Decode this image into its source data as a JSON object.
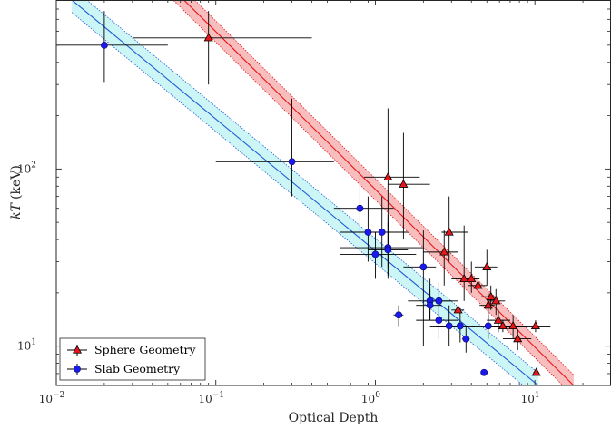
{
  "chart_data": {
    "type": "scatter",
    "xlabel": "Optical Depth",
    "ylabel_main": "kT",
    "ylabel_unit": "(keV)",
    "xscale": "log",
    "yscale": "log",
    "xlim": [
      0.01,
      30
    ],
    "ylim": [
      6,
      900
    ],
    "xticks": [
      {
        "value": 0.01,
        "base": "10",
        "exp": "−2"
      },
      {
        "value": 0.1,
        "base": "10",
        "exp": "−1"
      },
      {
        "value": 1,
        "base": "10",
        "exp": "0"
      },
      {
        "value": 10,
        "base": "10",
        "exp": "1"
      }
    ],
    "yticks": [
      {
        "value": 10,
        "base": "10",
        "exp": "1"
      },
      {
        "value": 100,
        "base": "10",
        "exp": "2"
      }
    ],
    "grid": false,
    "legend_position": "bottom-left",
    "series": [
      {
        "name": "Sphere Geometry",
        "marker": "triangle",
        "color": "#e8161a",
        "fit_color": "#e8161a",
        "band_color": "#f7b6b6",
        "fit": {
          "x_start": 0.04,
          "y_start": 1350,
          "x_end": 17.5,
          "y_end": 6
        },
        "band": {
          "upper_offset_dex": 0.06,
          "lower_offset_dex": -0.06
        },
        "points": [
          {
            "x": 0.09,
            "y": 550,
            "xerr": [
              0.03,
              0.4
            ],
            "yerr": [
              300,
              780
            ]
          },
          {
            "x": 1.2,
            "y": 90,
            "xerr": [
              0.85,
              1.9
            ],
            "yerr": [
              28,
              220
            ]
          },
          {
            "x": 1.5,
            "y": 82,
            "xerr": [
              1.2,
              2.2
            ],
            "yerr": [
              40,
              160
            ]
          },
          {
            "x": 2.7,
            "y": 34,
            "xerr": [
              2.0,
              3.3
            ],
            "yerr": [
              22,
              45
            ]
          },
          {
            "x": 2.9,
            "y": 44,
            "xerr": [
              2.6,
              3.8
            ],
            "yerr": [
              30,
              70
            ]
          },
          {
            "x": 3.3,
            "y": 16,
            "xerr": [
              3.0,
              3.6
            ],
            "yerr": [
              13,
              19
            ]
          },
          {
            "x": 3.6,
            "y": 24,
            "xerr": [
              3.0,
              4.3
            ],
            "yerr": [
              18,
              48
            ]
          },
          {
            "x": 4.0,
            "y": 24,
            "xerr": [
              3.5,
              4.5
            ],
            "yerr": [
              20,
              30
            ]
          },
          {
            "x": 4.4,
            "y": 22,
            "xerr": [
              3.8,
              5.0
            ],
            "yerr": [
              18,
              26
            ]
          },
          {
            "x": 5.0,
            "y": 28,
            "xerr": [
              4.2,
              5.8
            ],
            "yerr": [
              22,
              35
            ]
          },
          {
            "x": 5.1,
            "y": 17,
            "xerr": [
              4.5,
              5.6
            ],
            "yerr": [
              14,
              20
            ]
          },
          {
            "x": 5.3,
            "y": 19,
            "xerr": [
              4.6,
              5.8
            ],
            "yerr": [
              16,
              22
            ]
          },
          {
            "x": 5.7,
            "y": 18,
            "xerr": [
              5.0,
              6.5
            ],
            "yerr": [
              15,
              21
            ]
          },
          {
            "x": 5.9,
            "y": 14,
            "xerr": [
              5.0,
              7.0
            ],
            "yerr": [
              12,
              16
            ]
          },
          {
            "x": 6.3,
            "y": 13,
            "xerr": [
              5.0,
              8.0
            ],
            "yerr": [
              12,
              14
            ]
          },
          {
            "x": 7.3,
            "y": 13,
            "xerr": [
              6.0,
              9.0
            ],
            "yerr": [
              11,
              15
            ]
          },
          {
            "x": 7.8,
            "y": 11,
            "xerr": [
              6.3,
              9.5
            ],
            "yerr": [
              9.5,
              12.5
            ]
          },
          {
            "x": 10.1,
            "y": 13,
            "xerr": [
              6.5,
              12.5
            ],
            "yerr": [
              12,
              14
            ]
          },
          {
            "x": 10.2,
            "y": 7.1,
            "xerr": [
              9.8,
              10.6
            ],
            "yerr": [
              6.9,
              7.4
            ]
          }
        ]
      },
      {
        "name": "Slab Geometry",
        "marker": "circle",
        "color": "#1a1aee",
        "fit_color": "#1f5bd6",
        "band_color": "#c6f4f4",
        "fit": {
          "x_start": 0.0125,
          "y_start": 900,
          "x_end": 10.5,
          "y_end": 6
        },
        "band": {
          "upper_offset_dex": 0.07,
          "lower_offset_dex": -0.07
        },
        "points": [
          {
            "x": 0.02,
            "y": 500,
            "xerr": [
              0.01,
              0.05
            ],
            "yerr": [
              310,
              780
            ]
          },
          {
            "x": 0.3,
            "y": 110,
            "xerr": [
              0.1,
              0.55
            ],
            "yerr": [
              70,
              250
            ]
          },
          {
            "x": 0.8,
            "y": 60,
            "xerr": [
              0.55,
              1.3
            ],
            "yerr": [
              40,
              100
            ]
          },
          {
            "x": 0.9,
            "y": 44,
            "xerr": [
              0.6,
              1.6
            ],
            "yerr": [
              30,
              70
            ]
          },
          {
            "x": 1.0,
            "y": 33,
            "xerr": [
              0.6,
              1.8
            ],
            "yerr": [
              24,
              44
            ]
          },
          {
            "x": 1.1,
            "y": 44,
            "xerr": [
              0.8,
              1.6
            ],
            "yerr": [
              28,
              70
            ]
          },
          {
            "x": 1.2,
            "y": 36,
            "xerr": [
              0.6,
              2.0
            ],
            "yerr": [
              24,
              55
            ]
          },
          {
            "x": 1.2,
            "y": 35,
            "xerr": [
              0.9,
              1.6
            ],
            "yerr": [
              25,
              50
            ]
          },
          {
            "x": 1.4,
            "y": 15,
            "xerr": [
              1.3,
              1.5
            ],
            "yerr": [
              13,
              17
            ]
          },
          {
            "x": 2.0,
            "y": 28,
            "xerr": [
              1.5,
              2.4
            ],
            "yerr": [
              10,
              45
            ]
          },
          {
            "x": 2.2,
            "y": 18,
            "xerr": [
              1.6,
              3.0
            ],
            "yerr": [
              14,
              24
            ]
          },
          {
            "x": 2.2,
            "y": 17,
            "xerr": [
              1.8,
              2.6
            ],
            "yerr": [
              14,
              21
            ]
          },
          {
            "x": 2.5,
            "y": 18,
            "xerr": [
              2.0,
              3.3
            ],
            "yerr": [
              14,
              23
            ]
          },
          {
            "x": 2.5,
            "y": 14,
            "xerr": [
              1.8,
              3.3
            ],
            "yerr": [
              11,
              18
            ]
          },
          {
            "x": 2.9,
            "y": 13,
            "xerr": [
              2.2,
              3.6
            ],
            "yerr": [
              10,
              17
            ]
          },
          {
            "x": 3.4,
            "y": 13,
            "xerr": [
              2.4,
              4.2
            ],
            "yerr": [
              10.5,
              16
            ]
          },
          {
            "x": 3.7,
            "y": 11,
            "xerr": [
              3.5,
              3.9
            ],
            "yerr": [
              9.2,
              13
            ]
          },
          {
            "x": 4.8,
            "y": 7.1,
            "xerr": [
              4.6,
              5.0
            ],
            "yerr": [
              6.9,
              7.3
            ]
          },
          {
            "x": 5.1,
            "y": 13,
            "xerr": [
              4.0,
              6.3
            ],
            "yerr": [
              11,
              15
            ]
          }
        ]
      }
    ]
  }
}
